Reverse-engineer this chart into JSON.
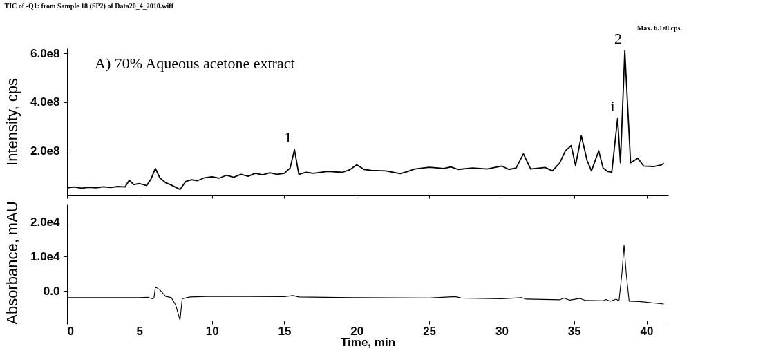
{
  "chart_data": [
    {
      "type": "line",
      "title": "TIC of -Q1: from Sample 18 (SP2) of Data20_4_2010.wiff",
      "ylabel": "Intensity, cps",
      "tick_labels": "y",
      "annotations": [
        "A)  70% Aqueous acetone extract",
        "Max. 6.1e8 cps.",
        {
          "text": "1",
          "x": 15.7,
          "y": 205000000
        },
        {
          "text": "2",
          "x": 38.5,
          "y": 610000000
        },
        {
          "text": "i",
          "x": 38,
          "y": 332000000
        }
      ],
      "xlim": [
        0,
        41.5
      ],
      "xticks": [
        0,
        5,
        10,
        15,
        20,
        25,
        30,
        35,
        40
      ],
      "ylim": [
        20000000,
        620000000
      ],
      "yticks": [
        {
          "value": 200000000,
          "label": "2.0e8"
        },
        {
          "value": 400000000,
          "label": "4.0e8"
        },
        {
          "value": 600000000,
          "label": "6.0e8"
        }
      ],
      "series": [
        {
          "color": "#000000",
          "x": [
            0,
            0.5,
            1,
            1.5,
            2,
            2.5,
            3,
            3.5,
            4,
            4.3,
            4.6,
            5,
            5.5,
            5.8,
            6.1,
            6.4,
            6.8,
            7.2,
            7.6,
            7.8,
            8.2,
            8.6,
            9,
            9.5,
            10,
            10.5,
            11,
            11.5,
            12,
            12.5,
            13,
            13.5,
            14,
            14.5,
            15,
            15.4,
            15.7,
            16,
            16.5,
            17,
            18,
            19,
            19.5,
            20,
            20.5,
            21,
            22,
            23,
            23.5,
            24,
            25,
            26,
            26.5,
            27,
            28,
            29,
            30,
            30.5,
            31,
            31.5,
            32,
            33,
            33.5,
            34,
            34.4,
            34.8,
            35.1,
            35.5,
            35.9,
            36.2,
            36.7,
            37,
            37.3,
            37.6,
            38,
            38.2,
            38.5,
            38.9,
            39.4,
            39.8,
            40.5,
            41,
            41.2
          ],
          "values": [
            49000000,
            52000000,
            47000000,
            51000000,
            49000000,
            53000000,
            50000000,
            54000000,
            52000000,
            80000000,
            62000000,
            66000000,
            58000000,
            85000000,
            128000000,
            90000000,
            70000000,
            60000000,
            48000000,
            42000000,
            75000000,
            82000000,
            78000000,
            90000000,
            94000000,
            88000000,
            100000000,
            92000000,
            104000000,
            96000000,
            108000000,
            102000000,
            110000000,
            104000000,
            108000000,
            130000000,
            205000000,
            104000000,
            112000000,
            108000000,
            116000000,
            112000000,
            122000000,
            143000000,
            124000000,
            120000000,
            118000000,
            107000000,
            115000000,
            126000000,
            133000000,
            128000000,
            134000000,
            124000000,
            130000000,
            126000000,
            138000000,
            124000000,
            130000000,
            188000000,
            126000000,
            132000000,
            118000000,
            150000000,
            200000000,
            222000000,
            140000000,
            262000000,
            160000000,
            118000000,
            200000000,
            130000000,
            116000000,
            112000000,
            332000000,
            151000000,
            610000000,
            151000000,
            170000000,
            138000000,
            136000000,
            142000000,
            149000000
          ]
        }
      ]
    },
    {
      "type": "line",
      "xlabel": "Time, min",
      "ylabel": "Absorbance, mAU",
      "xlim": [
        0,
        41.5
      ],
      "xticks": [
        0,
        5,
        10,
        15,
        20,
        25,
        30,
        35,
        40
      ],
      "ylim": [
        -8500,
        25000
      ],
      "yticks": [
        {
          "value": 0,
          "label": "0.0"
        },
        {
          "value": 10000,
          "label": "1.0e4"
        },
        {
          "value": 20000,
          "label": "2.0e4"
        }
      ],
      "series": [
        {
          "color": "#000000",
          "x": [
            0,
            5,
            5.6,
            5.9,
            6.0,
            6.1,
            6.4,
            6.8,
            7.2,
            7.5,
            7.8,
            7.95,
            8.5,
            10,
            15,
            15.6,
            16,
            20,
            25,
            26.8,
            27.2,
            30,
            31.4,
            31.7,
            34,
            34.3,
            34.7,
            35.4,
            35.8,
            37,
            37.2,
            37.5,
            37.9,
            38.1,
            38.3,
            38.45,
            38.6,
            38.8,
            39.5,
            41.2
          ],
          "values": [
            -1900,
            -1900,
            -1800,
            -2200,
            -2000,
            1200,
            400,
            -1500,
            -1900,
            -4000,
            -8400,
            -2200,
            -1700,
            -1500,
            -1600,
            -1300,
            -1700,
            -1900,
            -2000,
            -1600,
            -2000,
            -2200,
            -1900,
            -2300,
            -2500,
            -2000,
            -2600,
            -2100,
            -2700,
            -2800,
            -2400,
            -2900,
            -2300,
            -2800,
            5000,
            13300,
            5000,
            -2900,
            -3000,
            -3700
          ]
        }
      ]
    }
  ]
}
